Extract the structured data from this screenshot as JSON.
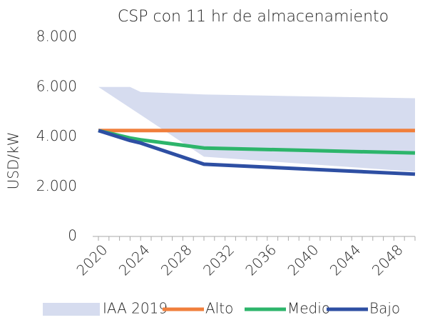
{
  "chart_data": {
    "type": "line",
    "title": "CSP con 11 hr de almacenamiento",
    "ylabel": "USD/kW",
    "x": [
      2020,
      2023,
      2024,
      2030,
      2040,
      2050
    ],
    "xlim": [
      2020,
      2050
    ],
    "xticks": [
      2020,
      2024,
      2028,
      2032,
      2036,
      2040,
      2044,
      2048
    ],
    "xminorticks": [
      2020,
      2021,
      2022,
      2023,
      2024,
      2025,
      2026,
      2027,
      2028,
      2029,
      2030,
      2031,
      2032,
      2033,
      2034,
      2035,
      2036,
      2037,
      2038,
      2039,
      2040,
      2041,
      2042,
      2043,
      2044,
      2045,
      2046,
      2047,
      2048,
      2049,
      2050
    ],
    "ylim": [
      0,
      8000
    ],
    "yticks": [
      {
        "value": 0,
        "label": "0"
      },
      {
        "value": 2000,
        "label": "2.000"
      },
      {
        "value": 4000,
        "label": "4.000"
      },
      {
        "value": 6000,
        "label": "6.000"
      },
      {
        "value": 8000,
        "label": "8.000"
      }
    ],
    "band": {
      "name": "IAA 2019",
      "color": "#d6dcef",
      "upper": [
        6000,
        6000,
        5800,
        5700,
        5620,
        5550
      ],
      "lower": [
        6000,
        5160,
        4880,
        3200,
        2900,
        2600
      ]
    },
    "series": [
      {
        "name": "Alto",
        "color": "#f07f3c",
        "values": [
          4250,
          4250,
          4250,
          4250,
          4250,
          4250
        ]
      },
      {
        "name": "Medio",
        "color": "#2db56b",
        "values": [
          4250,
          3950,
          3880,
          3550,
          3450,
          3350
        ]
      },
      {
        "name": "Bajo",
        "color": "#2e4fa3",
        "values": [
          4250,
          3850,
          3750,
          2900,
          2700,
          2500
        ]
      }
    ],
    "legend": "bottom"
  }
}
